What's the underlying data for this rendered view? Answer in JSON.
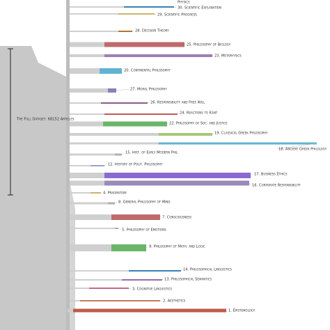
{
  "left_label": "The Full Dataset: 68152 Articles",
  "nodes": [
    {
      "label": "Physics"
    },
    {
      "label": "30. Scientific Explanation",
      "color": "#3a7fb5"
    },
    {
      "label": "29. Scientific Progress",
      "color": "#c9b46a"
    },
    {
      "label": "28. Decision Theory",
      "color": "#b5733a"
    },
    {
      "label": "25. Philosophy of Biology",
      "color": "#c06a6a"
    },
    {
      "label": "23. Metaphysics",
      "color": "#9c7fb8"
    },
    {
      "label": "20. Continental Philosophy",
      "color": "#5fb3d1"
    },
    {
      "label": "27. Moral Philosophy",
      "color": "#8a7fb8"
    },
    {
      "label": "26. Responsibility and Free Will",
      "color": "#8a5a8a"
    },
    {
      "label": "24. Reactions to Kant",
      "color": "#c05a5a"
    },
    {
      "label": "22. Philosophy of Soc. and Justice",
      "color": "#6ab56a"
    },
    {
      "label": "19. Classical Greek Philosophy",
      "color": "#a8c77a"
    },
    {
      "label": "18. Ancient Greek Philology",
      "color": "#5fb3d1"
    },
    {
      "label": "15. Hist. of Early Modern Phil.",
      "color": "#b0b0b0"
    },
    {
      "label": "12. History of Polit. Philosophy",
      "color": "#a0a0d0"
    },
    {
      "label": "17. Business Ethics",
      "color": "#8a6ad1"
    },
    {
      "label": "16. Corporate Responsibility",
      "color": "#9a8ab8"
    },
    {
      "label": "4. Pragmatism",
      "color": "#c9b46a"
    },
    {
      "label": "8. General Philosophy of Mind",
      "color": "#b0b0b0"
    },
    {
      "label": "7. Consciousness",
      "color": "#c06a6a"
    },
    {
      "label": "5. Philosophy of Emotions",
      "color": "#c0a0a0"
    },
    {
      "label": "9. Philosophy of Math. and Logic",
      "color": "#6ab56a"
    },
    {
      "label": "14. Philosophical Linguistics",
      "color": "#3a7fb5"
    },
    {
      "label": "13. Philosophical Semantics",
      "color": "#9a6aa8"
    },
    {
      "label": "3. Cognitive Linguistics",
      "color": "#c06a8a"
    },
    {
      "label": "2. Aesthetics",
      "color": "#c07a5a"
    },
    {
      "label": "1. Epistemology",
      "color": "#c05a4a"
    }
  ]
}
